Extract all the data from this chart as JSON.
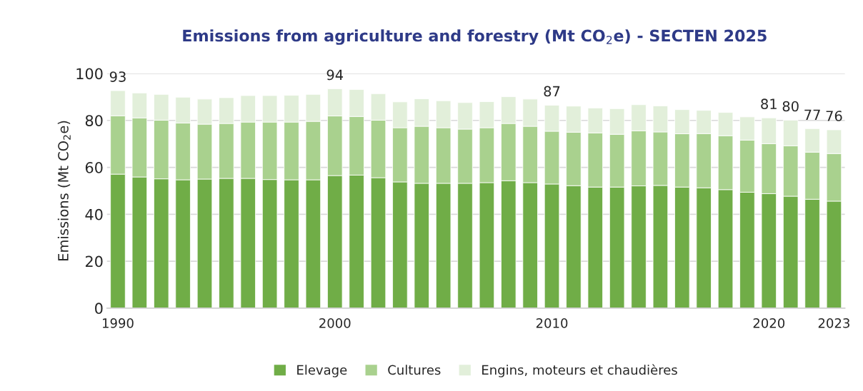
{
  "chart_data": {
    "type": "bar",
    "title": "Emissions from agriculture and forestry (Mt CO$_{2}$e) - SECTEN 2025",
    "ylabel": "Emissions (Mt CO$_{2}$e)",
    "categories": [
      "1990",
      null,
      null,
      null,
      null,
      null,
      null,
      null,
      null,
      null,
      "2000",
      null,
      null,
      null,
      null,
      null,
      null,
      null,
      null,
      null,
      "2010",
      null,
      null,
      null,
      null,
      null,
      null,
      null,
      null,
      null,
      "2020",
      null,
      null,
      "2023"
    ],
    "stacked": true,
    "series": [
      {
        "name": "Elevage",
        "color": "#70ad47",
        "values": [
          57.1,
          55.9,
          55.1,
          54.7,
          55.0,
          55.3,
          55.3,
          54.8,
          54.7,
          54.7,
          56.5,
          56.7,
          55.6,
          53.8,
          53.2,
          53.2,
          53.2,
          53.5,
          54.3,
          53.5,
          52.9,
          52.2,
          51.6,
          51.6,
          52.1,
          52.3,
          51.6,
          51.3,
          50.5,
          49.4,
          48.8,
          47.7,
          46.4,
          45.6
        ]
      },
      {
        "name": "Cultures",
        "color": "#a9d18e",
        "values": [
          24.9,
          25.2,
          25.0,
          24.2,
          23.4,
          23.4,
          24.0,
          24.5,
          24.6,
          24.9,
          25.4,
          25.0,
          24.5,
          23.1,
          24.3,
          23.7,
          23.1,
          23.4,
          24.4,
          24.0,
          22.5,
          22.8,
          23.1,
          22.5,
          23.5,
          22.8,
          22.7,
          23.1,
          23.0,
          22.2,
          21.3,
          21.5,
          20.1,
          20.3
        ]
      },
      {
        "name": "Engins, moteurs et chaudières",
        "color": "#e2efda",
        "values": [
          10.7,
          10.6,
          11.0,
          11.0,
          10.7,
          11.0,
          11.3,
          11.3,
          11.4,
          11.5,
          11.6,
          11.5,
          11.3,
          11.0,
          11.7,
          11.5,
          11.3,
          11.1,
          11.4,
          11.6,
          11.1,
          11.1,
          10.6,
          10.9,
          11.1,
          11.1,
          10.3,
          9.9,
          9.9,
          9.9,
          11.0,
          10.9,
          10.0,
          10.1
        ]
      }
    ],
    "totals": [
      "93",
      null,
      null,
      null,
      null,
      null,
      null,
      null,
      null,
      null,
      "94",
      null,
      null,
      null,
      null,
      null,
      null,
      null,
      null,
      null,
      "87",
      null,
      null,
      null,
      null,
      null,
      null,
      null,
      null,
      null,
      "81",
      "80",
      "77",
      "76"
    ],
    "ylim": [
      0,
      100
    ],
    "yticks": [
      0,
      20,
      40,
      60,
      80,
      100
    ],
    "grid": "y",
    "legend": "bottom"
  }
}
